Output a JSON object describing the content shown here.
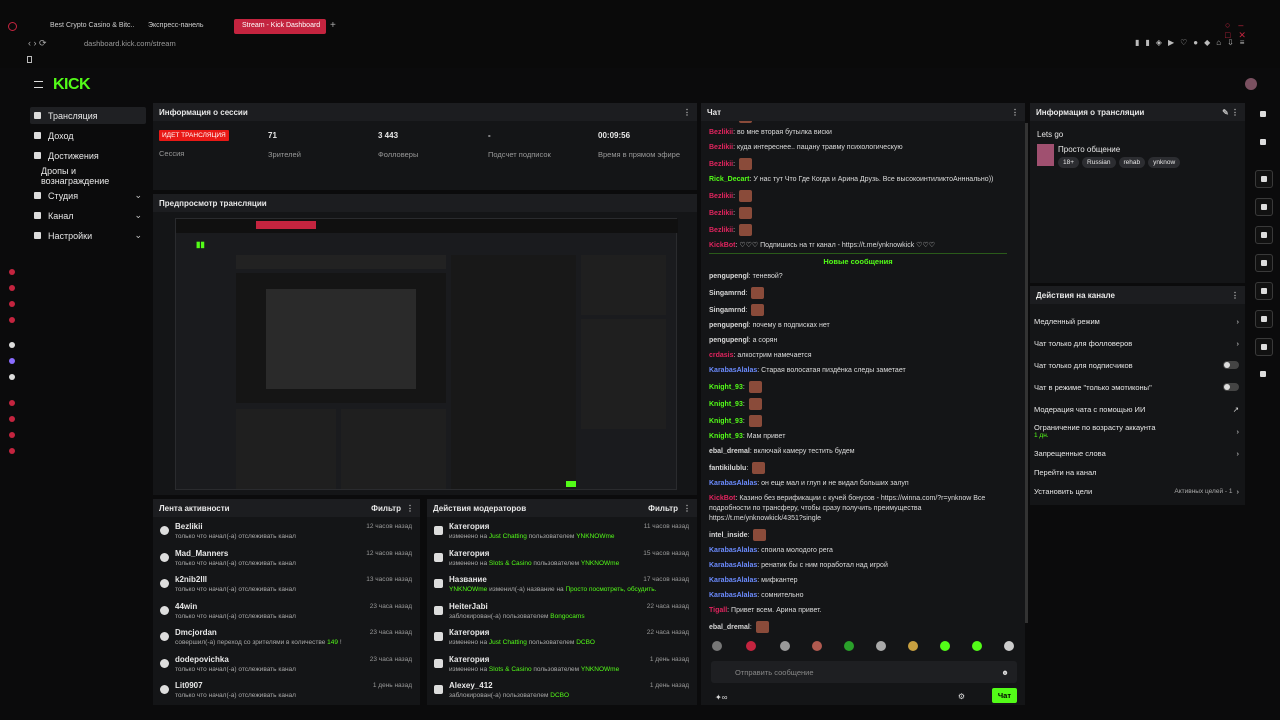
{
  "browser": {
    "tabs": [
      "Best Crypto Casino & Bitc...",
      "Экспресс-панель",
      "Stream - Kick Dashboard"
    ],
    "url": "dashboard.kick.com/stream"
  },
  "brand": "KICK",
  "nav": [
    {
      "label": "Трансляция",
      "active": true
    },
    {
      "label": "Доход"
    },
    {
      "label": "Достижения"
    },
    {
      "label": "Дропы и вознаграждение"
    },
    {
      "label": "Студия",
      "expand": true
    },
    {
      "label": "Канал",
      "expand": true
    },
    {
      "label": "Настройки",
      "expand": true
    }
  ],
  "session": {
    "title": "Информация о сессии",
    "badge": "ИДЕТ ТРАНСЛЯЦИЯ",
    "badge_caption": "Сессия",
    "stats": [
      {
        "value": "71",
        "label": "Зрителей"
      },
      {
        "value": "3 443",
        "label": "Фолловеры"
      },
      {
        "value": "-",
        "label": "Подсчет подписок"
      },
      {
        "value": "00:09:56",
        "label": "Время в прямом эфире"
      }
    ]
  },
  "preview": {
    "title": "Предпросмотр трансляции"
  },
  "activity": {
    "title": "Лента активности",
    "filter": "Фильтр",
    "items": [
      {
        "user": "Bezlikii",
        "desc": [
          "только что начал(-а) отслеживать канал"
        ],
        "time": "12 часов назад"
      },
      {
        "user": "Mad_Manners",
        "desc": [
          "только что начал(-а) отслеживать канал"
        ],
        "time": "12 часов назад"
      },
      {
        "user": "k2nib2lll",
        "desc": [
          "только что начал(-а) отслеживать канал"
        ],
        "time": "13 часов назад"
      },
      {
        "user": "44win",
        "desc": [
          "только что начал(-а) отслеживать канал"
        ],
        "time": "23 часа назад"
      },
      {
        "user": "Dmcjordan",
        "desc": [
          "совершил(-а) переход со зрителями в количестве ",
          "149",
          " !"
        ],
        "time": "23 часа назад"
      },
      {
        "user": "dodepovichka",
        "desc": [
          "только что начал(-а) отслеживать канал"
        ],
        "time": "23 часа назад"
      },
      {
        "user": "Lit0907",
        "desc": [
          "только что начал(-а) отслеживать канал"
        ],
        "time": "1 день назад"
      }
    ]
  },
  "mods": {
    "title": "Действия модераторов",
    "filter": "Фильтр",
    "items": [
      {
        "head": "Категория",
        "desc": [
          "изменено на ",
          "Just Chatting",
          " пользователем ",
          "YNKNOWme"
        ],
        "time": "11 часов назад"
      },
      {
        "head": "Категория",
        "desc": [
          "изменено на ",
          "Slots & Casino",
          " пользователем ",
          "YNKNOWme"
        ],
        "time": "15 часов назад"
      },
      {
        "head": "Название",
        "desc": [
          "",
          "YNKNOWme",
          " изменил(-а) название на ",
          "Просто посмотреть, обсудить."
        ],
        "time": "17 часов назад"
      },
      {
        "head": "HeiterJabi",
        "desc": [
          "заблокирован(-а) пользователем ",
          "Bongocams"
        ],
        "time": "22 часа назад"
      },
      {
        "head": "Категория",
        "desc": [
          "изменено на ",
          "Just Chatting",
          " пользователем ",
          "DCBO"
        ],
        "time": "22 часа назад"
      },
      {
        "head": "Категория",
        "desc": [
          "изменено на ",
          "Slots & Casino",
          " пользователем ",
          "YNKNOWme"
        ],
        "time": "1 день назад"
      },
      {
        "head": "Alexey_412",
        "desc": [
          "заблокирован(-а) пользователем ",
          "DCBO"
        ],
        "time": "1 день назад"
      }
    ]
  },
  "chat": {
    "title": "Чат",
    "divider": "Новые сообщения",
    "placeholder": "Отправить сообщение",
    "send": "Чат",
    "messages": [
      {
        "user": "Bezlikii",
        "color": "#e0245e",
        "emote": true
      },
      {
        "user": "Bezlikii",
        "color": "#e0245e",
        "text": "во мне вторая бутылка виски"
      },
      {
        "user": "Bezlikii",
        "color": "#e0245e",
        "text": "куда интереснее.. пацану травму психологическую"
      },
      {
        "user": "Bezlikii",
        "color": "#e0245e",
        "emote": true
      },
      {
        "user": "Rick_Decart",
        "color": "#53fc18",
        "text": "У нас тут Что Где Когда и Арина Друзь. Все высокоинтиликтоАнннально))"
      },
      {
        "user": "Bezlikii",
        "color": "#e0245e",
        "emote": true
      },
      {
        "user": "Bezlikii",
        "color": "#e0245e",
        "emote": true
      },
      {
        "user": "Bezlikii",
        "color": "#e0245e",
        "emote": true
      },
      {
        "user": "KickBot",
        "color": "#e0245e",
        "text": "♡♡♡ Подпишись на тг канал - https://t.me/ynknowkick ♡♡♡"
      },
      {
        "divider": true
      },
      {
        "user": "pengupengl",
        "color": "#d8d8d8",
        "text": "теневой?"
      },
      {
        "user": "Singamrnd",
        "color": "#d8d8d8",
        "emote": true
      },
      {
        "user": "Singamrnd",
        "color": "#d8d8d8",
        "emote": true
      },
      {
        "user": "pengupengl",
        "color": "#d8d8d8",
        "text": "почему в подписках нет"
      },
      {
        "user": "pengupengl",
        "color": "#d8d8d8",
        "text": "а сорян"
      },
      {
        "user": "crdasis",
        "color": "#e0245e",
        "text": "алкострим намечается"
      },
      {
        "user": "KarabasAlalas",
        "color": "#6c8cff",
        "text": "Старая волосатая пиздёнка следы заметает"
      },
      {
        "user": "Knight_93",
        "color": "#53fc18",
        "emote": true
      },
      {
        "user": "Knight_93",
        "color": "#53fc18",
        "emote": true
      },
      {
        "user": "Knight_93",
        "color": "#53fc18",
        "emote": true
      },
      {
        "user": "Knight_93",
        "color": "#53fc18",
        "text": "Мам привет"
      },
      {
        "user": "ebal_dremal",
        "color": "#d8d8d8",
        "text": "включай камеру тестить будем"
      },
      {
        "user": "fantikilublu",
        "color": "#d8d8d8",
        "emote": true
      },
      {
        "user": "KarabasAlalas",
        "color": "#6c8cff",
        "text": "он еще мал и глуп и не видал больших залуп"
      },
      {
        "user": "KickBot",
        "color": "#e0245e",
        "text": "Казино без верификации с кучей бонусов - https://winna.com/?r=ynknow Все подробности по трансферу, чтобы сразу получить преимущества https://t.me/ynknowkick/4351?single"
      },
      {
        "user": "intel_inside",
        "color": "#d8d8d8",
        "emote": true
      },
      {
        "user": "KarabasAlalas",
        "color": "#6c8cff",
        "text": "споила молодого рега"
      },
      {
        "user": "KarabasAlalas",
        "color": "#6c8cff",
        "text": "ренатик бы с ним поработал над игрой"
      },
      {
        "user": "KarabasAlalas",
        "color": "#6c8cff",
        "text": "мифкантер"
      },
      {
        "user": "KarabasAlalas",
        "color": "#6c8cff",
        "text": "сомнительно"
      },
      {
        "user": "Tigall",
        "color": "#e0245e",
        "text": "Привет всем. Арина привет."
      },
      {
        "user": "ebal_dremal",
        "color": "#d8d8d8",
        "emote": true
      }
    ]
  },
  "stream_info": {
    "title": "Информация о трансляции",
    "stream_title": "Lets go",
    "category": "Просто общение",
    "tags": [
      "18+",
      "Russian",
      "rehab",
      "ynknow"
    ]
  },
  "channel_actions": {
    "title": "Действия на канале",
    "items": [
      {
        "label": "Медленный режим",
        "control": "arrow"
      },
      {
        "label": "Чат только для фолловеров",
        "control": "arrow"
      },
      {
        "label": "Чат только для подписчиков",
        "control": "toggle"
      },
      {
        "label": "Чат в режиме \"только эмотиконы\"",
        "control": "toggle"
      },
      {
        "label": "Модерация чата с помощью ИИ",
        "control": "link"
      },
      {
        "label": "Ограничение по возрасту аккаунта",
        "sub": "1 дн.",
        "control": "arrow"
      },
      {
        "label": "Запрещенные слова",
        "control": "arrow"
      },
      {
        "label": "Перейти на канал"
      },
      {
        "label": "Установить цели",
        "status": "Активных целей - 1",
        "control": "arrow"
      }
    ]
  }
}
